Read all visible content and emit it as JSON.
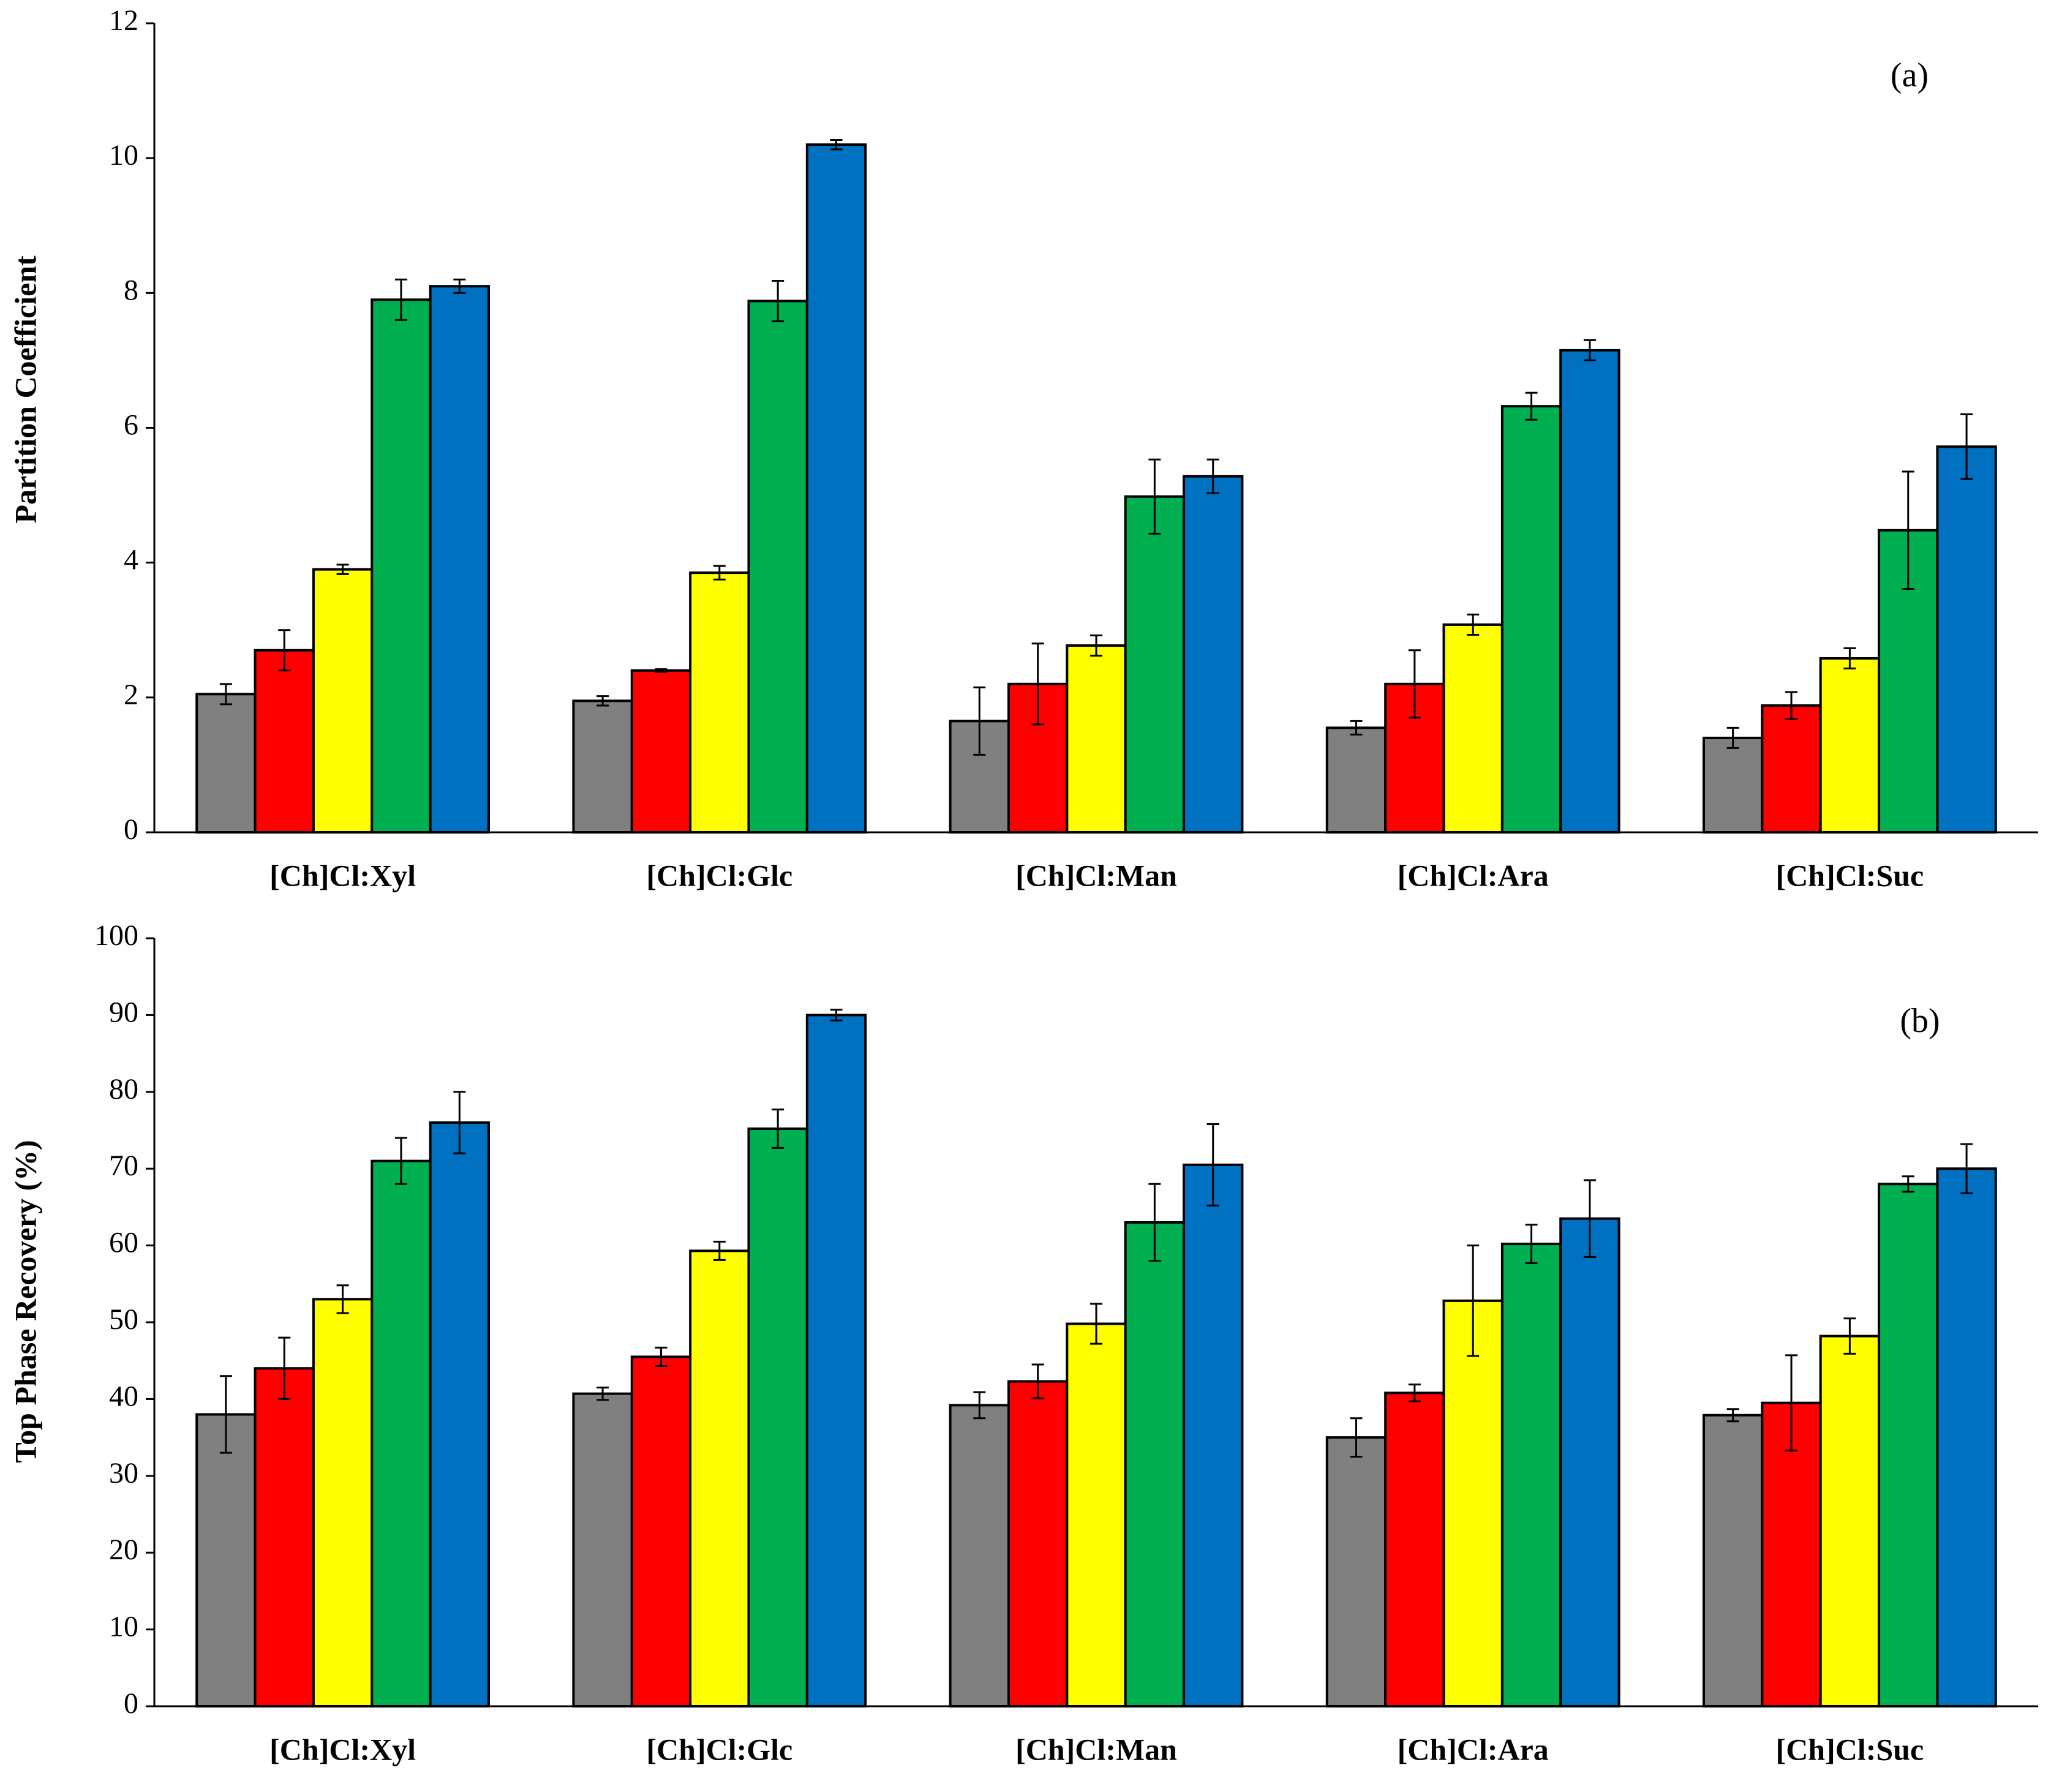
{
  "chart_data": [
    {
      "type": "bar",
      "annotation": "(a)",
      "y_label": "Partition Coefficient",
      "categories": [
        "[Ch]Cl:Xyl",
        "[Ch]Cl:Glc",
        "[Ch]Cl:Man",
        "[Ch]Cl:Ara",
        "[Ch]Cl:Suc"
      ],
      "ylim": [
        0,
        12
      ],
      "yticks": [
        0,
        2,
        4,
        6,
        8,
        10,
        12
      ],
      "series": [
        {
          "color": "#808080",
          "values": [
            2.05,
            1.95,
            1.65,
            1.55,
            1.4
          ],
          "errors": [
            0.15,
            0.07,
            0.5,
            0.1,
            0.15
          ]
        },
        {
          "color": "#ff0000",
          "values": [
            2.7,
            2.4,
            2.2,
            2.2,
            1.88
          ],
          "errors": [
            0.3,
            0.02,
            0.6,
            0.5,
            0.2
          ]
        },
        {
          "color": "#ffff00",
          "values": [
            3.9,
            3.85,
            2.77,
            3.08,
            2.58
          ],
          "errors": [
            0.07,
            0.1,
            0.15,
            0.15,
            0.15
          ]
        },
        {
          "color": "#00b050",
          "values": [
            7.9,
            7.88,
            4.98,
            6.32,
            4.48
          ],
          "errors": [
            0.3,
            0.3,
            0.55,
            0.2,
            0.87
          ]
        },
        {
          "color": "#0070c0",
          "values": [
            8.1,
            10.2,
            5.28,
            7.15,
            5.72
          ],
          "errors": [
            0.1,
            0.07,
            0.25,
            0.15,
            0.48
          ]
        }
      ]
    },
    {
      "type": "bar",
      "annotation": "(b)",
      "y_label": "Top Phase Recovery (%)",
      "categories": [
        "[Ch]Cl:Xyl",
        "[Ch]Cl:Glc",
        "[Ch]Cl:Man",
        "[Ch]Cl:Ara",
        "[Ch]Cl:Suc"
      ],
      "ylim": [
        0,
        100
      ],
      "yticks": [
        0,
        10,
        20,
        30,
        40,
        50,
        60,
        70,
        80,
        90,
        100
      ],
      "series": [
        {
          "color": "#808080",
          "values": [
            38,
            40.7,
            39.2,
            35,
            37.9
          ],
          "errors": [
            5,
            0.8,
            1.7,
            2.5,
            0.8
          ]
        },
        {
          "color": "#ff0000",
          "values": [
            44,
            45.5,
            42.3,
            40.8,
            39.5
          ],
          "errors": [
            4,
            1.2,
            2.2,
            1.1,
            6.2
          ]
        },
        {
          "color": "#ffff00",
          "values": [
            53,
            59.3,
            49.8,
            52.8,
            48.2
          ],
          "errors": [
            1.8,
            1.2,
            2.6,
            7.2,
            2.3
          ]
        },
        {
          "color": "#00b050",
          "values": [
            71,
            75.2,
            63,
            60.2,
            68
          ],
          "errors": [
            3,
            2.5,
            5,
            2.5,
            1
          ]
        },
        {
          "color": "#0070c0",
          "values": [
            76,
            90,
            70.5,
            63.5,
            70
          ],
          "errors": [
            4,
            0.7,
            5.3,
            5,
            3.2
          ]
        }
      ]
    }
  ]
}
